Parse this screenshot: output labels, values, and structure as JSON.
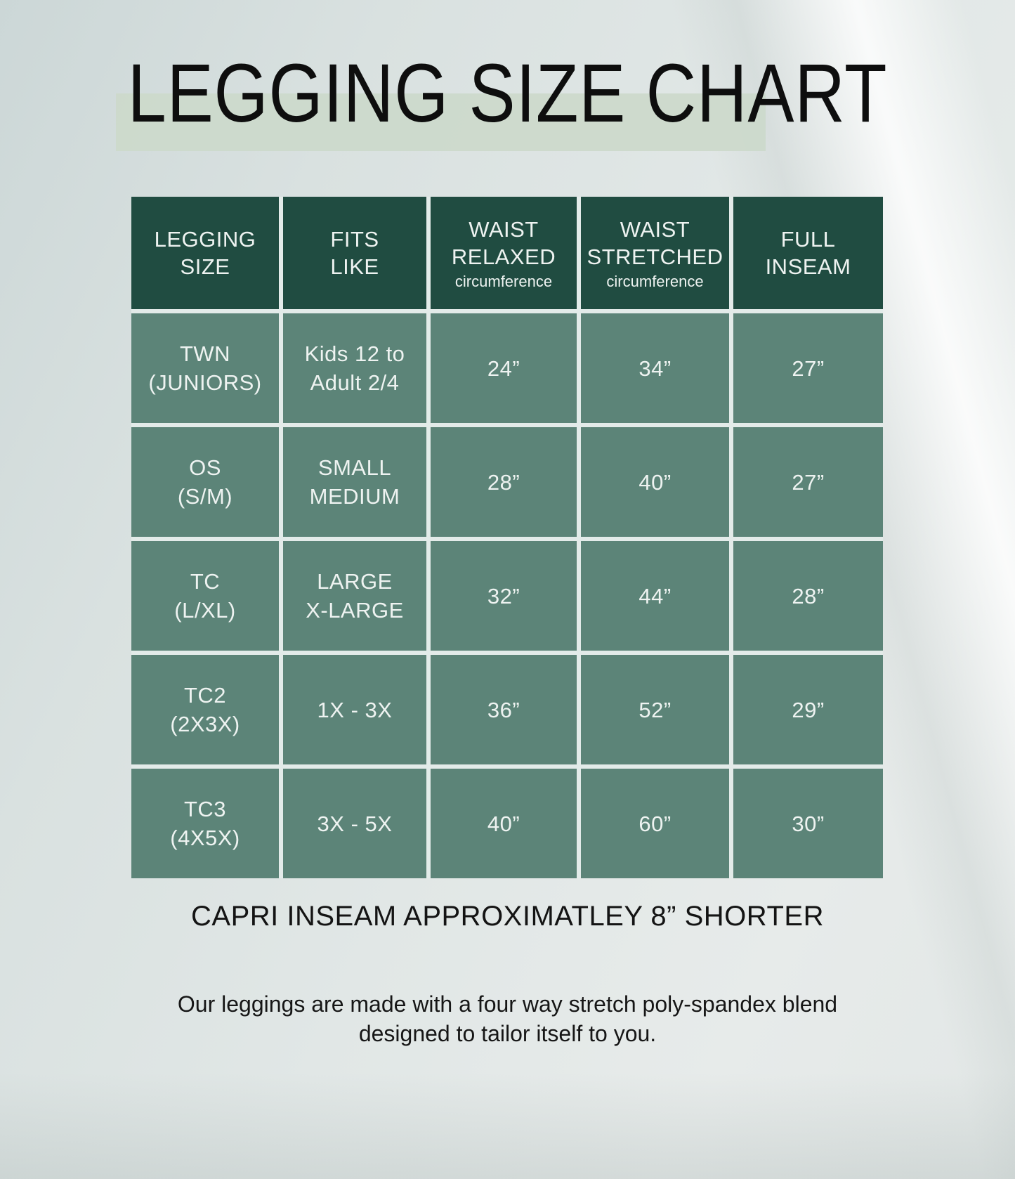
{
  "title": "LEGGING SIZE CHART",
  "table": {
    "headers": [
      {
        "title": "LEGGING\nSIZE",
        "sub": ""
      },
      {
        "title": "FITS\nLIKE",
        "sub": ""
      },
      {
        "title": "WAIST\nRELAXED",
        "sub": "circumference"
      },
      {
        "title": "WAIST\nSTRETCHED",
        "sub": "circumference"
      },
      {
        "title": "FULL\nINSEAM",
        "sub": ""
      }
    ],
    "rows": [
      {
        "size": "TWN\n(JUNIORS)",
        "fits": "Kids 12 to\nAdult 2/4",
        "waist_relaxed": "24”",
        "waist_stretched": "34”",
        "full_inseam": "27”"
      },
      {
        "size": "OS\n(S/M)",
        "fits": "SMALL\nMEDIUM",
        "waist_relaxed": "28”",
        "waist_stretched": "40”",
        "full_inseam": "27”"
      },
      {
        "size": "TC\n(L/XL)",
        "fits": "LARGE\nX-LARGE",
        "waist_relaxed": "32”",
        "waist_stretched": "44”",
        "full_inseam": "28”"
      },
      {
        "size": "TC2\n(2X3X)",
        "fits": "1X - 3X",
        "waist_relaxed": "36”",
        "waist_stretched": "52”",
        "full_inseam": "29”"
      },
      {
        "size": "TC3\n(4X5X)",
        "fits": "3X - 5X",
        "waist_relaxed": "40”",
        "waist_stretched": "60”",
        "full_inseam": "30”"
      }
    ]
  },
  "footer": {
    "note": "CAPRI INSEAM APPROXIMATLEY 8” SHORTER",
    "description": "Our leggings are made with a four way stretch poly-spandex blend\ndesigned to tailor itself to you."
  },
  "colors": {
    "header_bg": "#204c41",
    "row_bg": "#5c8478",
    "divider": "#e3ebe9",
    "title_highlight": "#ccd9cb",
    "text_light": "#eef3f1",
    "text_dark": "#121212"
  },
  "chart_data": {
    "type": "table",
    "title": "LEGGING SIZE CHART",
    "columns": [
      "LEGGING SIZE",
      "FITS LIKE",
      "WAIST RELAXED circumference",
      "WAIST STRETCHED circumference",
      "FULL INSEAM"
    ],
    "rows": [
      [
        "TWN (JUNIORS)",
        "Kids 12 to Adult 2/4",
        "24”",
        "34”",
        "27”"
      ],
      [
        "OS (S/M)",
        "SMALL MEDIUM",
        "28”",
        "40”",
        "27”"
      ],
      [
        "TC (L/XL)",
        "LARGE X-LARGE",
        "32”",
        "44”",
        "28”"
      ],
      [
        "TC2 (2X3X)",
        "1X - 3X",
        "36”",
        "52”",
        "29”"
      ],
      [
        "TC3 (4X5X)",
        "3X - 5X",
        "40”",
        "60”",
        "30”"
      ]
    ],
    "notes": [
      "CAPRI INSEAM APPROXIMATLEY 8” SHORTER",
      "Our leggings are made with a four way stretch poly-spandex blend designed to tailor itself to you."
    ]
  }
}
